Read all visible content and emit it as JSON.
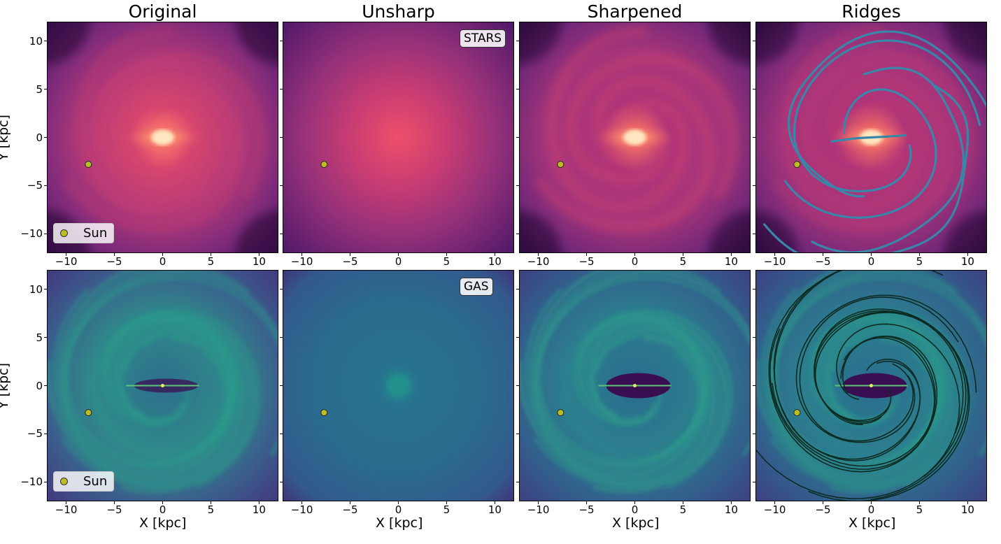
{
  "chart_data": {
    "type": "heatmap",
    "columns": [
      "Original",
      "Unsharp",
      "Sharpened",
      "Ridges"
    ],
    "rows": [
      {
        "tag": "STARS",
        "tag_panel": "Unsharp",
        "colormap": "magma",
        "ridge_color": "#3a86a8"
      },
      {
        "tag": "GAS",
        "tag_panel": "Unsharp",
        "colormap": "viridis",
        "ridge_color": "#0b2b22"
      }
    ],
    "xlabel": "X [kpc]",
    "ylabel": "Y [kpc]",
    "xlim": [
      -12,
      12
    ],
    "ylim": [
      -12,
      12
    ],
    "xticks": [
      -10,
      -5,
      0,
      5,
      10
    ],
    "yticks": [
      -10,
      -5,
      0,
      5,
      10
    ],
    "xtick_labels": [
      "−10",
      "−5",
      "0",
      "5",
      "10"
    ],
    "ytick_labels": [
      "−10",
      "−5",
      "0",
      "5",
      "10"
    ],
    "markers": [
      {
        "name": "Sun",
        "x": -7.7,
        "y": -2.8,
        "color": "#bcbd22"
      }
    ],
    "legend": {
      "label": "Sun",
      "location": "lower-left"
    },
    "grid": false
  }
}
